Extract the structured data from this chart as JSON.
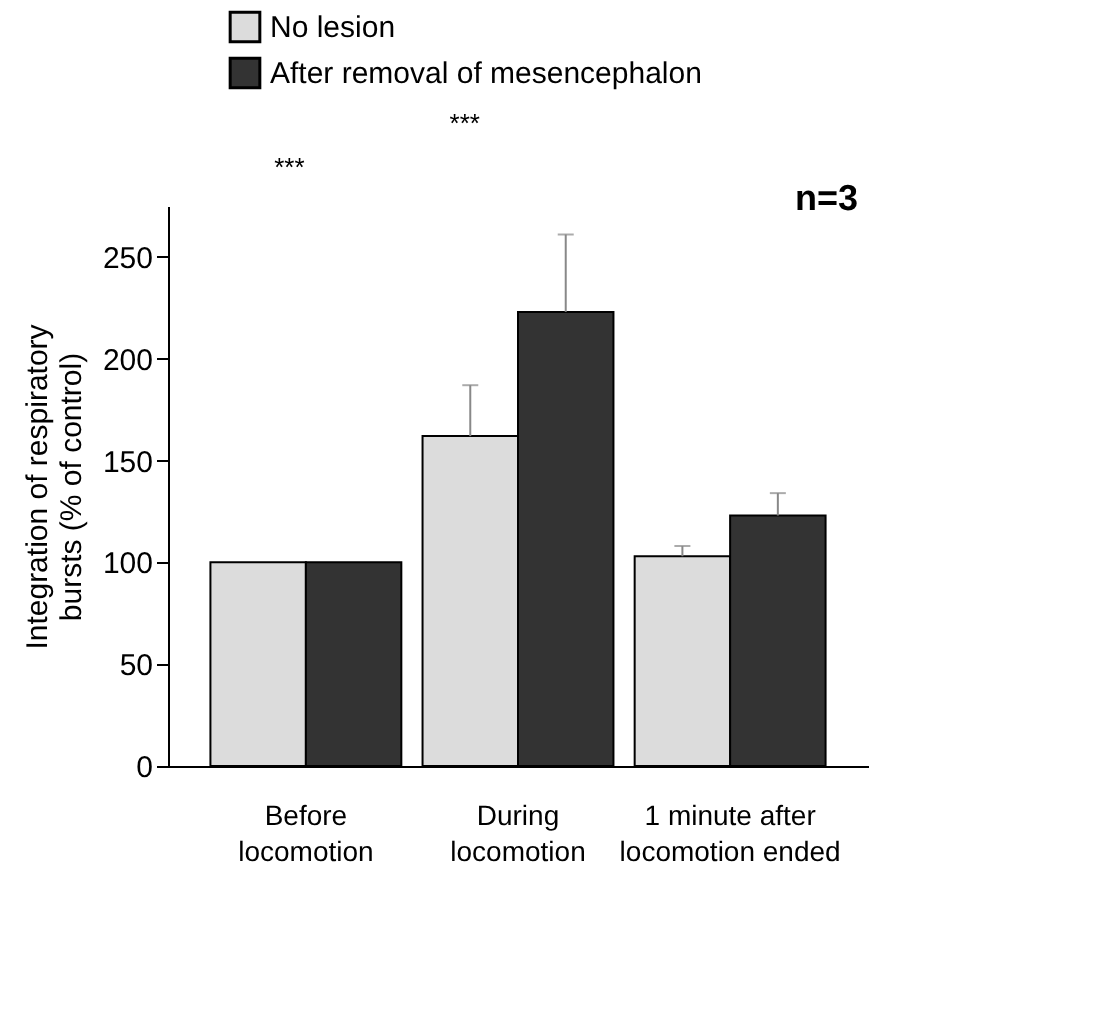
{
  "chart_data": {
    "type": "bar",
    "categories": [
      "Before locomotion",
      "During locomotion",
      "1 minute after locomotion ended"
    ],
    "series": [
      {
        "name": "No lesion",
        "color": "#dcdcdc",
        "values": [
          100,
          162,
          103
        ],
        "errors": [
          null,
          [
            162,
            187
          ],
          [
            103,
            108
          ]
        ]
      },
      {
        "name": "After removal of mesencephalon",
        "color": "#333333",
        "values": [
          100,
          223,
          123
        ],
        "errors": [
          null,
          [
            223,
            261
          ],
          [
            123,
            134
          ]
        ]
      }
    ],
    "ylabel": "Integration of respiratory bursts (% of control)",
    "ylim": [
      0,
      275
    ],
    "yticks": [
      0,
      50,
      100,
      150,
      200,
      250
    ],
    "annotations": [
      "***",
      "***",
      "n=3"
    ],
    "legend": "top left",
    "grid": false
  }
}
